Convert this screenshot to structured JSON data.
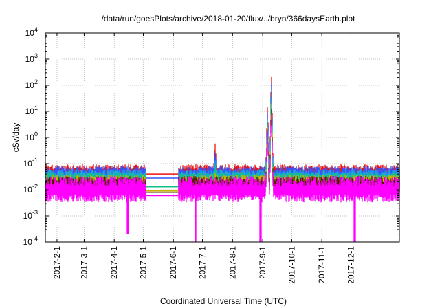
{
  "chart_data": {
    "type": "line",
    "title": "/data/run/goesPlots/archive/2018-01-20/flux/../bryn/366daysEarth.plot",
    "xlabel": "Coordinated Universal Time (UTC)",
    "ylabel": "cSv/day",
    "yscale": "log",
    "ylim": [
      0.0001,
      10000
    ],
    "xlim": [
      "2017-01-20",
      "2018-01-20"
    ],
    "grid": true,
    "x_ticks": [
      "2017-2-1",
      "2017-3-1",
      "2017-4-1",
      "2017-5-1",
      "2017-6-1",
      "2017-7-1",
      "2017-8-1",
      "2017-9-1",
      "2017-10-1",
      "2017-11-1",
      "2017-12-1"
    ],
    "y_ticks": [
      {
        "value": 0.0001,
        "mantissa": "10",
        "exp": "-4"
      },
      {
        "value": 0.001,
        "mantissa": "10",
        "exp": "-3"
      },
      {
        "value": 0.01,
        "mantissa": "10",
        "exp": "-2"
      },
      {
        "value": 0.1,
        "mantissa": "10",
        "exp": "-1"
      },
      {
        "value": 1,
        "mantissa": "10",
        "exp": "0"
      },
      {
        "value": 10,
        "mantissa": "10",
        "exp": "1"
      },
      {
        "value": 100,
        "mantissa": "10",
        "exp": "2"
      },
      {
        "value": 1000,
        "mantissa": "10",
        "exp": "3"
      },
      {
        "value": 10000,
        "mantissa": "10",
        "exp": "4"
      }
    ],
    "series": [
      {
        "color": "#ee1111",
        "baseline": 0.05,
        "spread": 0.5,
        "events": [
          {
            "date": "2017-07-14",
            "peak": 0.6
          },
          {
            "date": "2017-09-06",
            "peak": 15
          },
          {
            "date": "2017-09-10",
            "peak": 250
          }
        ]
      },
      {
        "color": "#3355ff",
        "baseline": 0.042,
        "spread": 0.5,
        "events": [
          {
            "date": "2017-07-14",
            "peak": 0.3
          },
          {
            "date": "2017-09-06",
            "peak": 10
          },
          {
            "date": "2017-09-10",
            "peak": 150
          }
        ]
      },
      {
        "color": "#1ea7d6",
        "baseline": 0.032,
        "spread": 0.5,
        "events": [
          {
            "date": "2017-07-14",
            "peak": 0.15
          },
          {
            "date": "2017-09-06",
            "peak": 6
          },
          {
            "date": "2017-09-10",
            "peak": 80
          }
        ]
      },
      {
        "color": "#11c288",
        "baseline": 0.025,
        "spread": 0.5,
        "events": [
          {
            "date": "2017-07-14",
            "peak": 0.08
          },
          {
            "date": "2017-09-06",
            "peak": 4
          },
          {
            "date": "2017-09-10",
            "peak": 40
          }
        ]
      },
      {
        "color": "#c8b400",
        "baseline": 0.019,
        "spread": 0.55,
        "events": [
          {
            "date": "2017-07-14",
            "peak": 0.05
          },
          {
            "date": "2017-09-06",
            "peak": 3
          },
          {
            "date": "2017-09-10",
            "peak": 25
          }
        ]
      },
      {
        "color": "#552200",
        "baseline": 0.017,
        "spread": 0.55,
        "events": [
          {
            "date": "2017-09-06",
            "peak": 2
          },
          {
            "date": "2017-09-10",
            "peak": 15
          }
        ]
      },
      {
        "color": "#ff00ff",
        "baseline": 0.012,
        "spread": 0.9,
        "events": [
          {
            "date": "2017-09-06",
            "peak": 2
          },
          {
            "date": "2017-09-10",
            "peak": 10
          }
        ],
        "dips": [
          {
            "date": "2017-04-15",
            "value": 0.0002
          },
          {
            "date": "2017-06-24",
            "value": 0.0001
          },
          {
            "date": "2017-08-30",
            "value": 0.0001
          },
          {
            "date": "2017-12-05",
            "value": 0.0001
          }
        ]
      }
    ],
    "gap": {
      "start": "2017-05-04",
      "end": "2017-06-06",
      "levels": [
        {
          "color": "#3355ff",
          "value": 0.028
        },
        {
          "color": "#ee1111",
          "value": 0.04
        },
        {
          "color": "#11c288",
          "value": 0.013
        },
        {
          "color": "#c8b400",
          "value": 0.009
        },
        {
          "color": "#552200",
          "value": 0.008
        },
        {
          "color": "#ff00ff",
          "value": 0.006
        }
      ]
    }
  }
}
